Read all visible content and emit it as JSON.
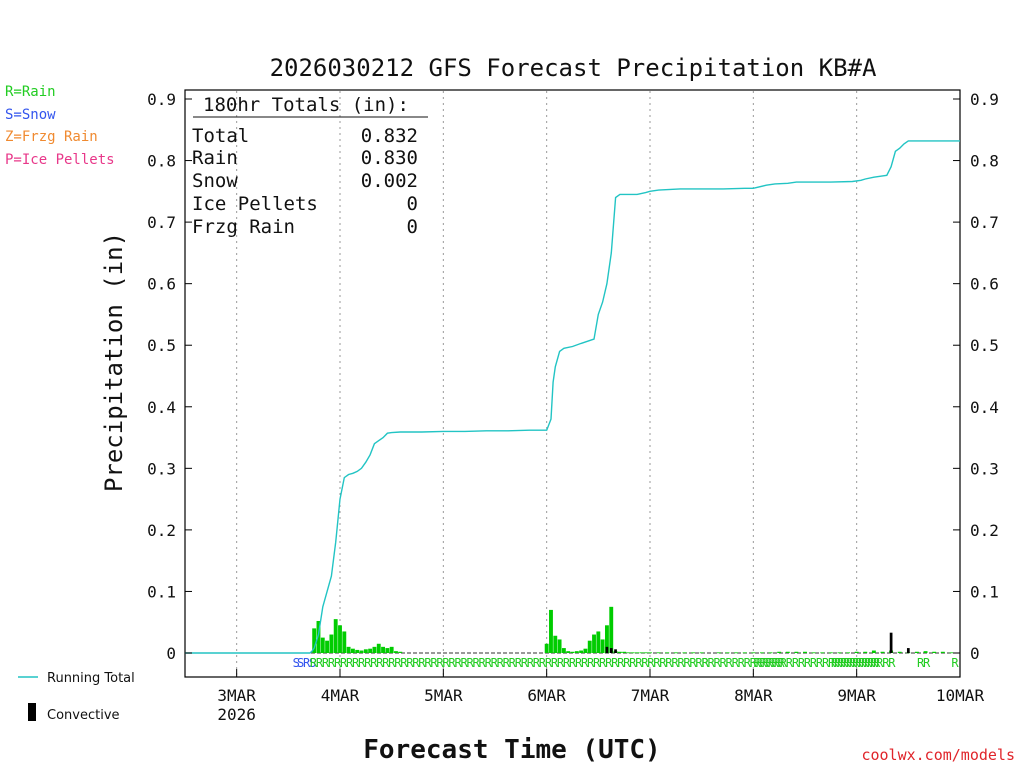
{
  "chart_data": {
    "type": "bar",
    "title": "2026030212 GFS Forecast Precipitation KB#A",
    "xlabel": "Forecast Time (UTC)",
    "ylabel": "Precipitation (in)",
    "ylim": [
      0,
      0.9
    ],
    "yticks": [
      0,
      0.1,
      0.2,
      0.3,
      0.4,
      0.5,
      0.6,
      0.7,
      0.8,
      0.9
    ],
    "ytick_labels": [
      "0",
      "0.1",
      "0.2",
      "0.3",
      "0.4",
      "0.5",
      "0.6",
      "0.7",
      "0.8",
      "0.9"
    ],
    "x_unit": "hours since 2026-03-02 12 UTC",
    "xlim": [
      0,
      180
    ],
    "xticks": [
      {
        "hour": 12,
        "label": "3MAR",
        "sublabel": "2026"
      },
      {
        "hour": 36,
        "label": "4MAR",
        "sublabel": ""
      },
      {
        "hour": 60,
        "label": "5MAR",
        "sublabel": ""
      },
      {
        "hour": 84,
        "label": "6MAR",
        "sublabel": ""
      },
      {
        "hour": 108,
        "label": "7MAR",
        "sublabel": ""
      },
      {
        "hour": 132,
        "label": "8MAR",
        "sublabel": ""
      },
      {
        "hour": 156,
        "label": "9MAR",
        "sublabel": ""
      },
      {
        "hour": 180,
        "label": "10MAR",
        "sublabel": ""
      }
    ],
    "legend_types": [
      {
        "label": "R=Rain",
        "color": "#22cc22"
      },
      {
        "label": "S=Snow",
        "color": "#3355ee"
      },
      {
        "label": "Z=Frzg Rain",
        "color": "#f08a30"
      },
      {
        "label": "P=Ice Pellets",
        "color": "#e8388a"
      }
    ],
    "totals": {
      "header": "180hr Totals (in):",
      "rows": [
        {
          "label": "Total",
          "value": "0.832"
        },
        {
          "label": "Rain",
          "value": "0.830"
        },
        {
          "label": "Snow",
          "value": "0.002"
        },
        {
          "label": "Ice Pellets",
          "value": "0"
        },
        {
          "label": "Frzg Rain",
          "value": "0"
        }
      ]
    },
    "series": [
      {
        "name": "Running Total",
        "type": "line",
        "color": "#22c4c4",
        "x": [
          0,
          29,
          29.5,
          30,
          31,
          32,
          33,
          34,
          35,
          36,
          37,
          38,
          39,
          40,
          41,
          42,
          43,
          44,
          45,
          46,
          47,
          48,
          50,
          55,
          60,
          65,
          70,
          75,
          80,
          84,
          85,
          85.5,
          86,
          87,
          88,
          90,
          92,
          95,
          96,
          97,
          98,
          99,
          100,
          101,
          102,
          103,
          105,
          107,
          108,
          110,
          115,
          120,
          125,
          130,
          132,
          135,
          137,
          140,
          142,
          145,
          150,
          155,
          157,
          158,
          160,
          162,
          163,
          164,
          165,
          166,
          167,
          168,
          170,
          175,
          180
        ],
        "values": [
          0,
          0,
          0.003,
          0.008,
          0.03,
          0.075,
          0.1,
          0.125,
          0.18,
          0.25,
          0.285,
          0.29,
          0.292,
          0.295,
          0.3,
          0.31,
          0.322,
          0.34,
          0.345,
          0.35,
          0.357,
          0.358,
          0.359,
          0.359,
          0.36,
          0.36,
          0.361,
          0.361,
          0.362,
          0.362,
          0.38,
          0.44,
          0.465,
          0.49,
          0.495,
          0.498,
          0.503,
          0.51,
          0.55,
          0.57,
          0.6,
          0.65,
          0.74,
          0.745,
          0.745,
          0.745,
          0.745,
          0.748,
          0.75,
          0.752,
          0.754,
          0.754,
          0.754,
          0.755,
          0.755,
          0.76,
          0.762,
          0.763,
          0.765,
          0.765,
          0.765,
          0.766,
          0.768,
          0.77,
          0.773,
          0.775,
          0.776,
          0.79,
          0.815,
          0.82,
          0.827,
          0.832,
          0.832,
          0.832,
          0.832
        ]
      },
      {
        "name": "Precipitation",
        "type": "bar",
        "color": "#00cc00",
        "x": [
          30,
          31,
          32,
          33,
          34,
          35,
          36,
          37,
          38,
          39,
          40,
          41,
          42,
          43,
          44,
          45,
          46,
          47,
          48,
          49,
          50,
          84,
          85,
          86,
          87,
          88,
          89,
          90,
          91,
          92,
          93,
          94,
          95,
          96,
          97,
          98,
          99,
          100,
          101,
          102,
          103,
          104,
          105,
          106,
          107,
          108,
          110,
          112,
          114,
          116,
          118,
          120,
          124,
          126,
          128,
          130,
          132,
          134,
          136,
          138,
          140,
          142,
          144,
          146,
          148,
          150,
          152,
          154,
          156,
          158,
          160,
          162,
          164,
          166,
          168,
          170,
          172,
          174,
          176,
          178
        ],
        "values": [
          0.04,
          0.052,
          0.025,
          0.02,
          0.03,
          0.055,
          0.045,
          0.035,
          0.01,
          0.007,
          0.005,
          0.004,
          0.006,
          0.007,
          0.01,
          0.015,
          0.01,
          0.008,
          0.01,
          0.003,
          0.002,
          0.015,
          0.07,
          0.028,
          0.022,
          0.008,
          0.003,
          0.002,
          0.003,
          0.004,
          0.007,
          0.02,
          0.03,
          0.035,
          0.022,
          0.045,
          0.075,
          0.003,
          0.002,
          0.002,
          0.001,
          0.001,
          0.001,
          0.001,
          0.001,
          0.001,
          0.001,
          0.001,
          0.001,
          0.001,
          0.001,
          0.001,
          0.001,
          0.001,
          0.001,
          0.001,
          0.001,
          0.001,
          0.001,
          0.002,
          0.002,
          0.002,
          0.002,
          0.001,
          0.001,
          0.001,
          0.001,
          0.001,
          0.002,
          0.002,
          0.004,
          0.002,
          0.004,
          0.002,
          0.001,
          0.002,
          0.003,
          0.002,
          0.002,
          0.001
        ]
      },
      {
        "name": "Convective",
        "type": "bar",
        "color": "#000000",
        "x": [
          98,
          99,
          100,
          164,
          168
        ],
        "values": [
          0.01,
          0.008,
          0.006,
          0.033,
          0.008
        ]
      }
    ],
    "precip_type_markers": [
      {
        "hours": [
          25
        ],
        "letter": "S",
        "color": "#3355ee"
      },
      {
        "hours": [
          26,
          27,
          28
        ],
        "letter": "SRS",
        "color": "#3355ee"
      },
      {
        "hours": [
          29
        ],
        "letter": "RRRRRRRRRRRRRRRRRRRRRRRRRRRRRRRRRRRRRRRRRRRRRRRRRRRRRRRRRRRRRRRRRRRRRRRRRRRRRRRRRRRRRRRRRRRRRRRRR",
        "color": "#22cc22"
      },
      {
        "hours": [
          120
        ],
        "letter": "R",
        "color": "#22cc22"
      },
      {
        "hours": [
          132
        ],
        "letter": "RRRRR",
        "color": "#22cc22"
      },
      {
        "hours": [
          150
        ],
        "letter": "RRRRRRRR",
        "color": "#22cc22"
      },
      {
        "hours": [
          170
        ],
        "letter": "RR",
        "color": "#22cc22"
      },
      {
        "hours": [
          178
        ],
        "letter": "R",
        "color": "#22cc22"
      }
    ],
    "legend_lines": [
      {
        "label": "Running Total"
      },
      {
        "label": "Convective"
      }
    ],
    "credit": "coolwx.com/models",
    "grid": "vertical-dotted"
  }
}
